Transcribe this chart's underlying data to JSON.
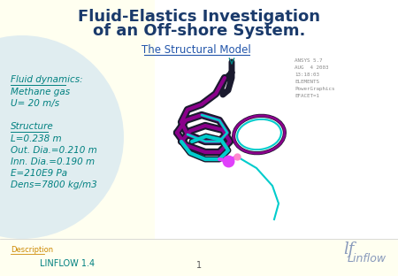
{
  "title_line1": "Fluid-Elastics Investigation",
  "title_line2": "of an Off-shore System.",
  "subtitle": "The Structural Model",
  "fluid_header": "Fluid dynamics:",
  "fluid_lines": [
    "Methane gas",
    "U= 20 m/s"
  ],
  "structure_header": "Structure",
  "structure_lines": [
    "L=0.238 m",
    "Out. Dia.=0.210 m",
    "Inn. Dia.=0.190 m",
    "E=210E9 Pa",
    "Dens=7800 kg/m3"
  ],
  "footer_left": "Description",
  "footer_center": "1",
  "footer_brand": "Linflow",
  "footer_version": "LINFLOW 1.4",
  "ansys_lines": [
    "ANSYS 5.7",
    "AUG  4 2003",
    "13:18:03",
    "ELEMENTS",
    "PowerGraphics",
    "EFACET=1"
  ],
  "bg_color": "#fffff0",
  "bg_circle_color": "#c8dff0",
  "title_color": "#1a3a6b",
  "subtitle_color": "#2255aa",
  "left_panel_color": "#fffff0",
  "text_teal": "#008080",
  "footer_text_color": "#008080",
  "ansys_text_color": "#888888",
  "pipe_dark": "#1a1a2e",
  "pipe_purple": "#8B008B",
  "pipe_cyan": "#00cccc",
  "pipe_magenta": "#e040fb",
  "pipe_blue": "#4444cc"
}
